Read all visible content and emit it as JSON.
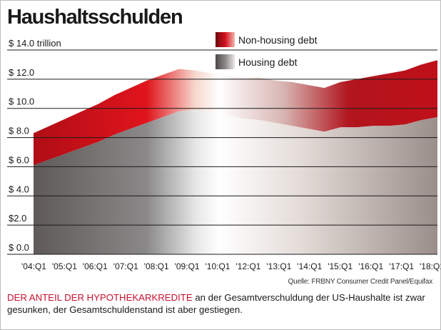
{
  "title": "Haushaltsschulden",
  "source": "Quelle: FRBNY Consumer Credit Panel/Equifax",
  "caption": {
    "highlight": "DER ANTEIL DER HYPOTHEKARKREDITE",
    "rest": " an der Gesamtverschuldung der US-Haushalte ist zwar gesunken, der Gesamtschuldenstand ist aber gestiegen."
  },
  "colors": {
    "non_housing": "#d10f1c",
    "non_housing_dark": "#6e0b10",
    "housing": "#5a5656",
    "housing_light": "#e8e2df",
    "gridline": "#1a1a1a"
  },
  "chart_data": {
    "type": "area",
    "stacked": true,
    "unit": "trillion USD",
    "ylim": [
      0,
      14
    ],
    "yticks": [
      0,
      2,
      4,
      6,
      8,
      10,
      12,
      14
    ],
    "ytick_labels": [
      "$ 0.0",
      "$2.0",
      "$ 4.0",
      "$ 6.0",
      "$ 8.0",
      "$ 10.0",
      "$ 12.0",
      "$ 14.0 trillion"
    ],
    "xticks": [
      "'04:Q1",
      "'05:Q1",
      "'06:Q1",
      "'07:Q1",
      "'08:Q1",
      "'09:Q1",
      "'10:Q1",
      "'12:Q1",
      "'13:Q1",
      "'14:Q1",
      "'15:Q1",
      "'16:Q1",
      "'17:Q1",
      "'18:Q1"
    ],
    "grid": true,
    "legend": "top-right",
    "series": [
      {
        "name": "Housing debt",
        "values": [
          6.1,
          6.5,
          6.9,
          7.3,
          7.7,
          8.2,
          8.6,
          9.0,
          9.4,
          9.8,
          9.9,
          9.8,
          9.5,
          9.3,
          9.2,
          9.0,
          8.8,
          8.6,
          8.4,
          8.7,
          8.7,
          8.8,
          8.8,
          8.9,
          9.2,
          9.4
        ]
      },
      {
        "name": "Non-housing debt",
        "values": [
          2.2,
          2.3,
          2.4,
          2.5,
          2.6,
          2.7,
          2.8,
          2.9,
          2.9,
          2.9,
          2.7,
          2.6,
          2.7,
          2.8,
          2.9,
          2.9,
          3.0,
          3.0,
          3.0,
          3.1,
          3.3,
          3.4,
          3.6,
          3.7,
          3.8,
          3.9
        ]
      }
    ],
    "totals": [
      8.3,
      8.8,
      9.3,
      9.8,
      10.3,
      10.9,
      11.4,
      11.9,
      12.3,
      12.7,
      12.6,
      12.4,
      12.2,
      12.1,
      12.1,
      11.9,
      11.8,
      11.6,
      11.4,
      11.8,
      12.0,
      12.2,
      12.4,
      12.6,
      13.0,
      13.3
    ]
  }
}
